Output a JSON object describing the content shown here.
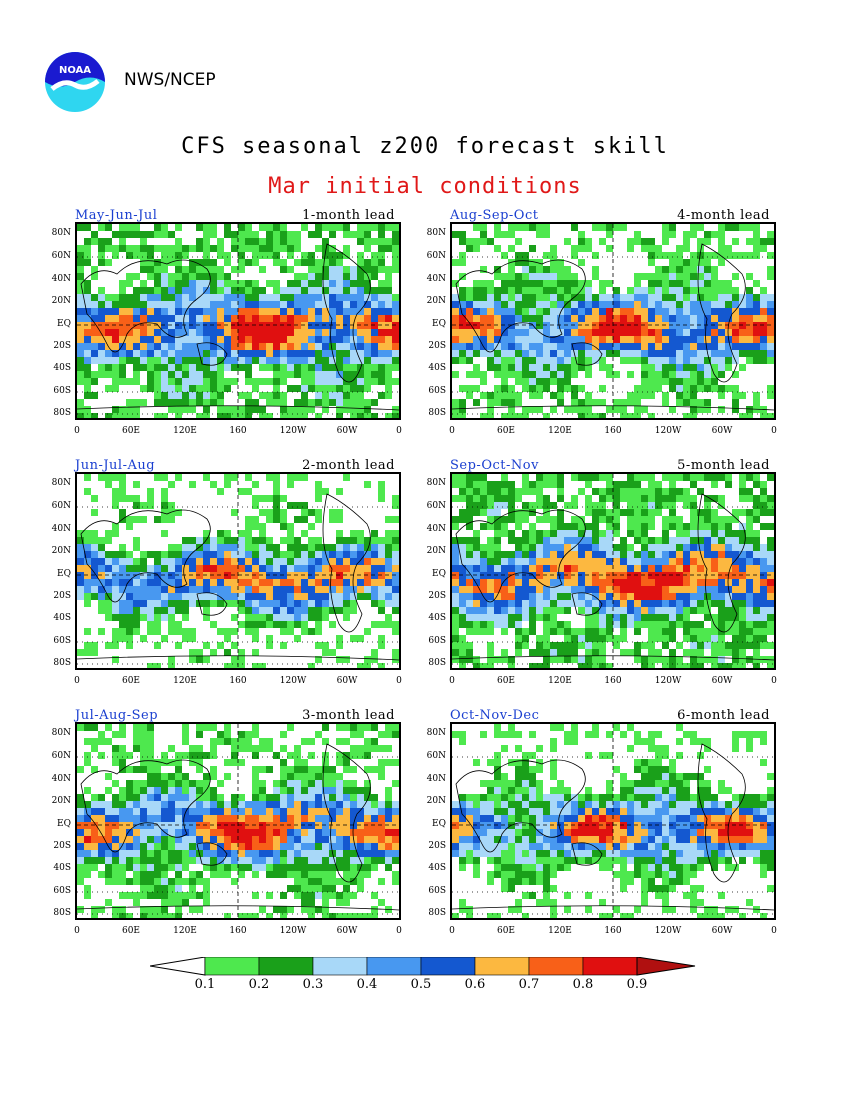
{
  "header": {
    "org": "NWS/NCEP",
    "logo_text": "NOAA",
    "title": "CFS seasonal z200 forecast skill",
    "subtitle": "Mar initial conditions"
  },
  "axes": {
    "lat_labels": [
      "80N",
      "60N",
      "40N",
      "20N",
      "EQ",
      "20S",
      "40S",
      "60S",
      "80S"
    ],
    "lon_labels": [
      "0",
      "60E",
      "120E",
      "160",
      "120W",
      "60W",
      "0"
    ]
  },
  "panels": [
    {
      "season": "May-Jun-Jul",
      "lead": "1-month lead"
    },
    {
      "season": "Aug-Sep-Oct",
      "lead": "4-month lead"
    },
    {
      "season": "Jun-Jul-Aug",
      "lead": "2-month lead"
    },
    {
      "season": "Sep-Oct-Nov",
      "lead": "5-month lead"
    },
    {
      "season": "Jul-Aug-Sep",
      "lead": "3-month lead"
    },
    {
      "season": "Oct-Nov-Dec",
      "lead": "6-month lead"
    }
  ],
  "colorbar": {
    "labels": [
      "0.1",
      "0.2",
      "0.3",
      "0.4",
      "0.5",
      "0.6",
      "0.7",
      "0.8",
      "0.9"
    ],
    "colors": [
      "#4ee84e",
      "#1aa01a",
      "#a8d8f8",
      "#4898f0",
      "#1458d0",
      "#fcb840",
      "#f86018",
      "#e01010",
      "#b01010"
    ]
  },
  "colors": {
    "title_red": "#e01818",
    "season_blue": "#1a3fd0"
  }
}
